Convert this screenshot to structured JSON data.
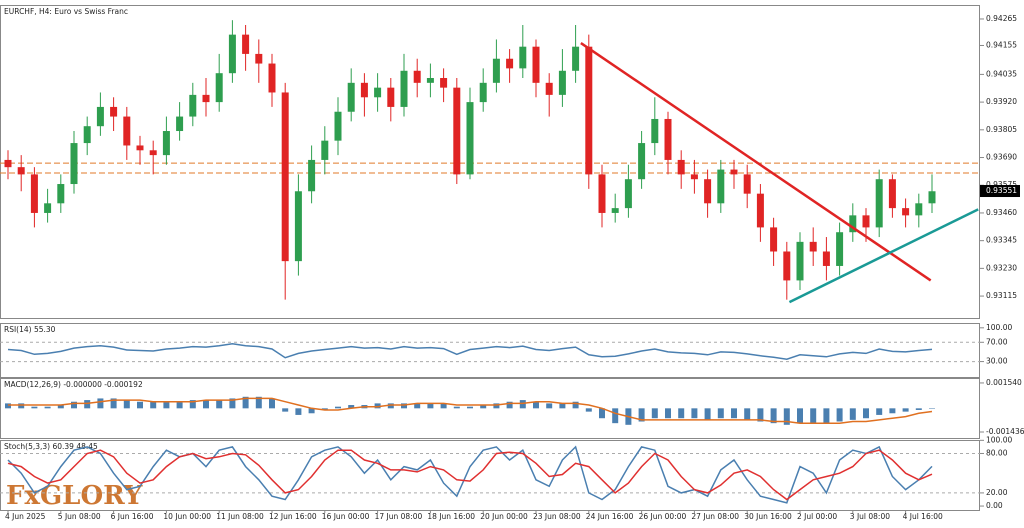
{
  "chart_data": [
    {
      "type": "candlestick",
      "title": "EURCHF, H4:  Euro vs Swiss Franc",
      "x": [
        "4 Jun 2025",
        null,
        null,
        null,
        "5 Jun 08:00",
        null,
        null,
        null,
        "6 Jun 16:00",
        null,
        null,
        null,
        "10 Jun 00:00",
        null,
        null,
        null,
        "11 Jun 08:00",
        null,
        null,
        null,
        "12 Jun 16:00",
        null,
        null,
        null,
        "16 Jun 00:00",
        null,
        null,
        null,
        "17 Jun 08:00",
        null,
        null,
        null,
        "18 Jun 16:00",
        null,
        null,
        null,
        "20 Jun 00:00",
        null,
        null,
        null,
        "23 Jun 08:00",
        null,
        null,
        null,
        "24 Jun 16:00",
        null,
        null,
        null,
        "26 Jun 00:00",
        null,
        null,
        null,
        "27 Jun 08:00",
        null,
        null,
        null,
        "30 Jun 16:00",
        null,
        null,
        null,
        "2 Jul 00:00",
        null,
        null,
        null,
        "3 Jul 08:00",
        null,
        null,
        null,
        "4 Jul 16:00",
        null,
        null
      ],
      "candles": [
        [
          0.9368,
          0.9372,
          0.936,
          0.9365
        ],
        [
          0.9365,
          0.937,
          0.9355,
          0.9362
        ],
        [
          0.9362,
          0.9365,
          0.934,
          0.9346
        ],
        [
          0.9346,
          0.9356,
          0.9342,
          0.935
        ],
        [
          0.935,
          0.9362,
          0.9346,
          0.9358
        ],
        [
          0.9358,
          0.938,
          0.9354,
          0.9375
        ],
        [
          0.9375,
          0.9386,
          0.937,
          0.9382
        ],
        [
          0.9382,
          0.9396,
          0.9378,
          0.939
        ],
        [
          0.939,
          0.9394,
          0.938,
          0.9386
        ],
        [
          0.9386,
          0.939,
          0.9368,
          0.9374
        ],
        [
          0.9374,
          0.9378,
          0.9366,
          0.9372
        ],
        [
          0.9372,
          0.9376,
          0.9362,
          0.937
        ],
        [
          0.937,
          0.9386,
          0.9366,
          0.938
        ],
        [
          0.938,
          0.9392,
          0.9376,
          0.9386
        ],
        [
          0.9386,
          0.94,
          0.9382,
          0.9395
        ],
        [
          0.9395,
          0.9402,
          0.9386,
          0.9392
        ],
        [
          0.9392,
          0.9412,
          0.9388,
          0.9404
        ],
        [
          0.9404,
          0.9426,
          0.94,
          0.942
        ],
        [
          0.942,
          0.9424,
          0.9405,
          0.9412
        ],
        [
          0.9412,
          0.9418,
          0.94,
          0.9408
        ],
        [
          0.9408,
          0.9412,
          0.939,
          0.9396
        ],
        [
          0.9396,
          0.94,
          0.931,
          0.9326
        ],
        [
          0.9326,
          0.9362,
          0.932,
          0.9355
        ],
        [
          0.9355,
          0.9374,
          0.935,
          0.9368
        ],
        [
          0.9368,
          0.9382,
          0.9362,
          0.9376
        ],
        [
          0.9376,
          0.9394,
          0.937,
          0.9388
        ],
        [
          0.9388,
          0.9406,
          0.9384,
          0.94
        ],
        [
          0.94,
          0.9404,
          0.9386,
          0.9394
        ],
        [
          0.9394,
          0.9404,
          0.9388,
          0.9398
        ],
        [
          0.9398,
          0.9402,
          0.9384,
          0.939
        ],
        [
          0.939,
          0.9412,
          0.9386,
          0.9405
        ],
        [
          0.9405,
          0.941,
          0.9394,
          0.94
        ],
        [
          0.94,
          0.9408,
          0.9394,
          0.9402
        ],
        [
          0.9402,
          0.9406,
          0.9392,
          0.9398
        ],
        [
          0.9398,
          0.9402,
          0.9358,
          0.9362
        ],
        [
          0.9362,
          0.9398,
          0.936,
          0.9392
        ],
        [
          0.9392,
          0.9406,
          0.9388,
          0.94
        ],
        [
          0.94,
          0.9418,
          0.9396,
          0.941
        ],
        [
          0.941,
          0.9414,
          0.94,
          0.9406
        ],
        [
          0.9406,
          0.9424,
          0.9402,
          0.9415
        ],
        [
          0.9415,
          0.9418,
          0.9394,
          0.94
        ],
        [
          0.94,
          0.9404,
          0.9386,
          0.9395
        ],
        [
          0.9395,
          0.9414,
          0.939,
          0.9405
        ],
        [
          0.9405,
          0.9424,
          0.94,
          0.9415
        ],
        [
          0.9415,
          0.942,
          0.9356,
          0.9362
        ],
        [
          0.9362,
          0.9366,
          0.934,
          0.9346
        ],
        [
          0.9346,
          0.9354,
          0.9342,
          0.9348
        ],
        [
          0.9348,
          0.9366,
          0.9344,
          0.936
        ],
        [
          0.936,
          0.938,
          0.9356,
          0.9375
        ],
        [
          0.9375,
          0.9394,
          0.937,
          0.9385
        ],
        [
          0.9385,
          0.9388,
          0.9362,
          0.9368
        ],
        [
          0.9368,
          0.9372,
          0.9356,
          0.9362
        ],
        [
          0.9362,
          0.9368,
          0.9354,
          0.936
        ],
        [
          0.936,
          0.9364,
          0.9344,
          0.935
        ],
        [
          0.935,
          0.9368,
          0.9346,
          0.9364
        ],
        [
          0.9364,
          0.9368,
          0.9356,
          0.9362
        ],
        [
          0.9362,
          0.9366,
          0.9348,
          0.9354
        ],
        [
          0.9354,
          0.9358,
          0.9334,
          0.934
        ],
        [
          0.934,
          0.9344,
          0.9324,
          0.933
        ],
        [
          0.933,
          0.9334,
          0.931,
          0.9318
        ],
        [
          0.9318,
          0.9338,
          0.9314,
          0.9334
        ],
        [
          0.9334,
          0.934,
          0.9324,
          0.933
        ],
        [
          0.933,
          0.9336,
          0.9318,
          0.9324
        ],
        [
          0.9324,
          0.9342,
          0.932,
          0.9338
        ],
        [
          0.9338,
          0.935,
          0.9334,
          0.9345
        ],
        [
          0.9345,
          0.9348,
          0.9334,
          0.934
        ],
        [
          0.934,
          0.9364,
          0.9336,
          0.936
        ],
        [
          0.936,
          0.9362,
          0.9344,
          0.9348
        ],
        [
          0.9348,
          0.9352,
          0.934,
          0.9345
        ],
        [
          0.9345,
          0.9354,
          0.934,
          0.935
        ],
        [
          0.935,
          0.9362,
          0.9346,
          0.9355
        ]
      ],
      "up_color": "#2e9e4f",
      "down_color": "#e02424",
      "ylim": [
        0.93024,
        0.94323
      ],
      "yticks": [
        0.94265,
        0.94155,
        0.94035,
        {
          "value": 0.9392,
          "label": "0.93920"
        },
        0.93805,
        {
          "value": 0.9369,
          "label": "0.93690"
        },
        0.93575,
        {
          "value": 0.9346,
          "label": "0.93460"
        },
        0.93345,
        {
          "value": 0.9323,
          "label": "0.93230"
        },
        0.93115
      ],
      "last_price": 0.93551,
      "hlines": [
        0.93667,
        0.93626
      ],
      "hline_color": "#e07a2a",
      "trendlines": [
        {
          "color": "#e02424",
          "x": [
            43.4,
            69.9
          ],
          "y": [
            0.94165,
            0.9318
          ]
        },
        {
          "color": "#1a9a96",
          "x": [
            59.2,
            73.5
          ],
          "y": [
            0.9309,
            0.93475
          ]
        }
      ],
      "watermark": "FxGLORY"
    },
    {
      "type": "line",
      "title": "RSI(14) 55.30",
      "series": [
        {
          "color": "#4a7fb0",
          "values": [
            55,
            53,
            45,
            47,
            51,
            58,
            61,
            63,
            60,
            54,
            53,
            52,
            56,
            58,
            61,
            60,
            63,
            67,
            63,
            61,
            56,
            38,
            47,
            52,
            55,
            58,
            61,
            58,
            59,
            56,
            61,
            58,
            59,
            57,
            45,
            55,
            58,
            61,
            59,
            62,
            55,
            53,
            57,
            60,
            44,
            40,
            41,
            46,
            52,
            56,
            50,
            48,
            47,
            44,
            50,
            49,
            46,
            42,
            39,
            35,
            44,
            42,
            40,
            46,
            49,
            47,
            56,
            51,
            50,
            53,
            55.3
          ]
        }
      ],
      "ylim": [
        -2,
        110
      ],
      "yticks": [
        {
          "value": 100,
          "label": "100.00"
        },
        {
          "value": 70,
          "label": "70.00"
        },
        {
          "value": 30,
          "label": "30.00"
        }
      ],
      "levels": [
        70,
        30
      ]
    },
    {
      "type": "bar",
      "title": "MACD(12,26,9) -0.000000 -0.000192",
      "series": [
        {
          "type": "bar",
          "color": "#4a7fb0",
          "values": [
            0.0003,
            0.0003,
            0.0001,
            0.0001,
            0.0002,
            0.0004,
            0.0005,
            0.0006,
            0.0006,
            0.0005,
            0.0004,
            0.0004,
            0.0004,
            0.0004,
            0.0005,
            0.0005,
            0.0005,
            0.0006,
            0.0007,
            0.0007,
            0.0006,
            -0.0002,
            -0.0004,
            -0.0003,
            -0.0001,
            0.0001,
            0.0002,
            0.0002,
            0.0003,
            0.0003,
            0.0003,
            0.0003,
            0.0003,
            0.0003,
            0.0001,
            0.0001,
            0.0002,
            0.0003,
            0.0004,
            0.0005,
            0.0004,
            0.0003,
            0.0003,
            0.0004,
            -0.0002,
            -0.0006,
            -0.0009,
            -0.001,
            -0.0008,
            -0.0006,
            -0.0006,
            -0.0006,
            -0.0006,
            -0.0007,
            -0.0006,
            -0.0006,
            -0.0007,
            -0.0008,
            -0.0009,
            -0.001,
            -0.0009,
            -0.0009,
            -0.0009,
            -0.0008,
            -0.0007,
            -0.0006,
            -0.0004,
            -0.0003,
            -0.0002,
            -0.0001,
            0
          ]
        },
        {
          "type": "line",
          "color": "#e07020",
          "values": [
            0.0002,
            0.0002,
            0.0002,
            0.0002,
            0.0002,
            0.0003,
            0.0003,
            0.0004,
            0.0005,
            0.0005,
            0.0005,
            0.0004,
            0.0004,
            0.0004,
            0.0004,
            0.0005,
            0.0005,
            0.0005,
            0.0006,
            0.0006,
            0.0006,
            0.0004,
            0.0002,
            0,
            -0.0001,
            -0.0001,
            0,
            0.0001,
            0.0001,
            0.0002,
            0.0002,
            0.0003,
            0.0003,
            0.0003,
            0.0002,
            0.0002,
            0.0002,
            0.0002,
            0.0003,
            0.0003,
            0.0004,
            0.0004,
            0.0003,
            0.0003,
            0.0002,
            0,
            -0.0003,
            -0.0005,
            -0.0007,
            -0.0007,
            -0.0007,
            -0.0007,
            -0.0007,
            -0.0007,
            -0.0007,
            -0.0007,
            -0.0007,
            -0.0007,
            -0.0008,
            -0.0008,
            -0.0009,
            -0.0009,
            -0.0009,
            -0.0009,
            -0.0008,
            -0.0008,
            -0.0007,
            -0.0006,
            -0.0005,
            -0.0003,
            -0.000192
          ]
        }
      ],
      "ylim": [
        -0.0018,
        0.00184
      ],
      "yticks": [
        {
          "value": 0.00154,
          "label": "0.001540"
        },
        {
          "value": -0.001436,
          "label": "-0.001436"
        }
      ]
    },
    {
      "type": "line",
      "title": "Stoch(5,3,3) 60.39 48.45",
      "series": [
        {
          "color": "#4a7fb0",
          "values": [
            70,
            50,
            20,
            30,
            60,
            85,
            90,
            80,
            50,
            25,
            30,
            60,
            85,
            75,
            80,
            60,
            85,
            90,
            60,
            40,
            15,
            10,
            40,
            75,
            85,
            90,
            75,
            50,
            70,
            40,
            60,
            55,
            70,
            35,
            15,
            60,
            85,
            90,
            70,
            85,
            40,
            30,
            70,
            90,
            20,
            10,
            25,
            60,
            90,
            85,
            30,
            20,
            25,
            15,
            55,
            70,
            40,
            15,
            10,
            5,
            60,
            50,
            20,
            70,
            85,
            80,
            90,
            45,
            25,
            40,
            60.39
          ]
        },
        {
          "color": "#e03030",
          "values": [
            65,
            60,
            45,
            35,
            40,
            60,
            80,
            85,
            75,
            50,
            35,
            40,
            60,
            75,
            80,
            72,
            75,
            80,
            78,
            62,
            40,
            20,
            25,
            45,
            70,
            85,
            85,
            70,
            65,
            55,
            55,
            52,
            60,
            55,
            40,
            38,
            55,
            80,
            82,
            80,
            65,
            45,
            48,
            65,
            60,
            40,
            20,
            35,
            60,
            80,
            70,
            45,
            25,
            20,
            32,
            50,
            55,
            45,
            25,
            10,
            25,
            40,
            45,
            50,
            60,
            80,
            85,
            70,
            50,
            40,
            48.45
          ]
        }
      ],
      "ylim": [
        -6,
        100.5
      ],
      "yticks": [
        {
          "value": 100,
          "label": "100.00"
        },
        {
          "value": 80,
          "label": "80.00"
        },
        {
          "value": 20,
          "label": "20.00"
        },
        {
          "value": 0,
          "label": "0.00"
        }
      ],
      "levels": [
        80,
        20
      ]
    }
  ]
}
